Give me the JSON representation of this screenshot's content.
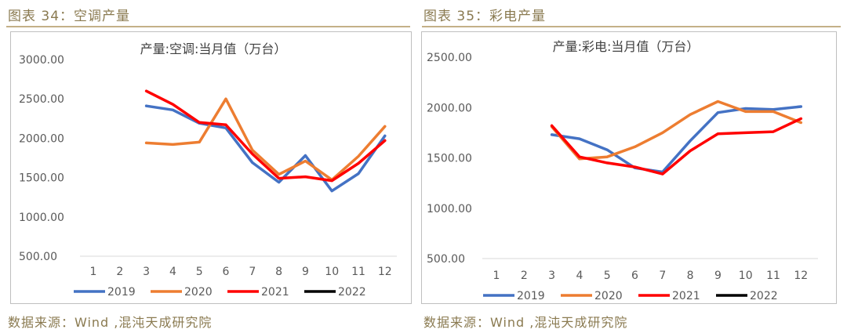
{
  "left": {
    "caption": "图表 34：空调产量",
    "source": "数据来源：Wind ,混沌天成研究院",
    "chart_data": {
      "type": "line",
      "title": "产量:空调:当月值（万台）",
      "categories": [
        "1",
        "2",
        "3",
        "4",
        "5",
        "6",
        "7",
        "8",
        "9",
        "10",
        "11",
        "12"
      ],
      "ylim": [
        500,
        3000
      ],
      "yticks": [
        "500.00",
        "1000.00",
        "1500.00",
        "2000.00",
        "2500.00",
        "3000.00"
      ],
      "ytick_values": [
        500,
        1000,
        1500,
        2000,
        2500,
        3000
      ],
      "grid": false,
      "legend": "bottom",
      "series": [
        {
          "name": "2019",
          "color": "#4472c4",
          "values": [
            null,
            null,
            2410,
            2360,
            2190,
            2130,
            1690,
            1440,
            1780,
            1330,
            1550,
            2030
          ]
        },
        {
          "name": "2020",
          "color": "#ed7d31",
          "values": [
            null,
            null,
            1940,
            1920,
            1950,
            2500,
            1850,
            1540,
            1710,
            1470,
            1770,
            2150
          ]
        },
        {
          "name": "2021",
          "color": "#ff0000",
          "values": [
            null,
            null,
            2600,
            2430,
            2200,
            2170,
            1800,
            1490,
            1510,
            1460,
            1680,
            1970
          ]
        },
        {
          "name": "2022",
          "color": "#000000",
          "values": [
            null,
            null,
            null,
            null,
            null,
            null,
            null,
            null,
            null,
            null,
            null,
            null
          ]
        }
      ]
    }
  },
  "right": {
    "caption": "图表 35：彩电产量",
    "source": "数据来源：Wind ,混沌天成研究院",
    "chart_data": {
      "type": "line",
      "title": "产量:彩电:当月值（万台）",
      "categories": [
        "1",
        "2",
        "3",
        "4",
        "5",
        "6",
        "7",
        "8",
        "9",
        "10",
        "11",
        "12"
      ],
      "ylim": [
        500,
        2500
      ],
      "yticks": [
        "500.00",
        "1000.00",
        "1500.00",
        "2000.00",
        "2500.00"
      ],
      "ytick_values": [
        500,
        1000,
        1500,
        2000,
        2500
      ],
      "grid": false,
      "legend": "bottom",
      "series": [
        {
          "name": "2019",
          "color": "#4472c4",
          "values": [
            null,
            null,
            1730,
            1690,
            1580,
            1400,
            1360,
            1670,
            1950,
            1990,
            1980,
            2010
          ]
        },
        {
          "name": "2020",
          "color": "#ed7d31",
          "values": [
            null,
            null,
            1810,
            1490,
            1510,
            1610,
            1750,
            1930,
            2060,
            1960,
            1960,
            1850
          ]
        },
        {
          "name": "2021",
          "color": "#ff0000",
          "values": [
            null,
            null,
            1820,
            1510,
            1450,
            1410,
            1340,
            1570,
            1740,
            1750,
            1760,
            1890
          ]
        },
        {
          "name": "2022",
          "color": "#000000",
          "values": [
            null,
            null,
            null,
            null,
            null,
            null,
            null,
            null,
            null,
            null,
            null,
            null
          ]
        }
      ]
    }
  }
}
